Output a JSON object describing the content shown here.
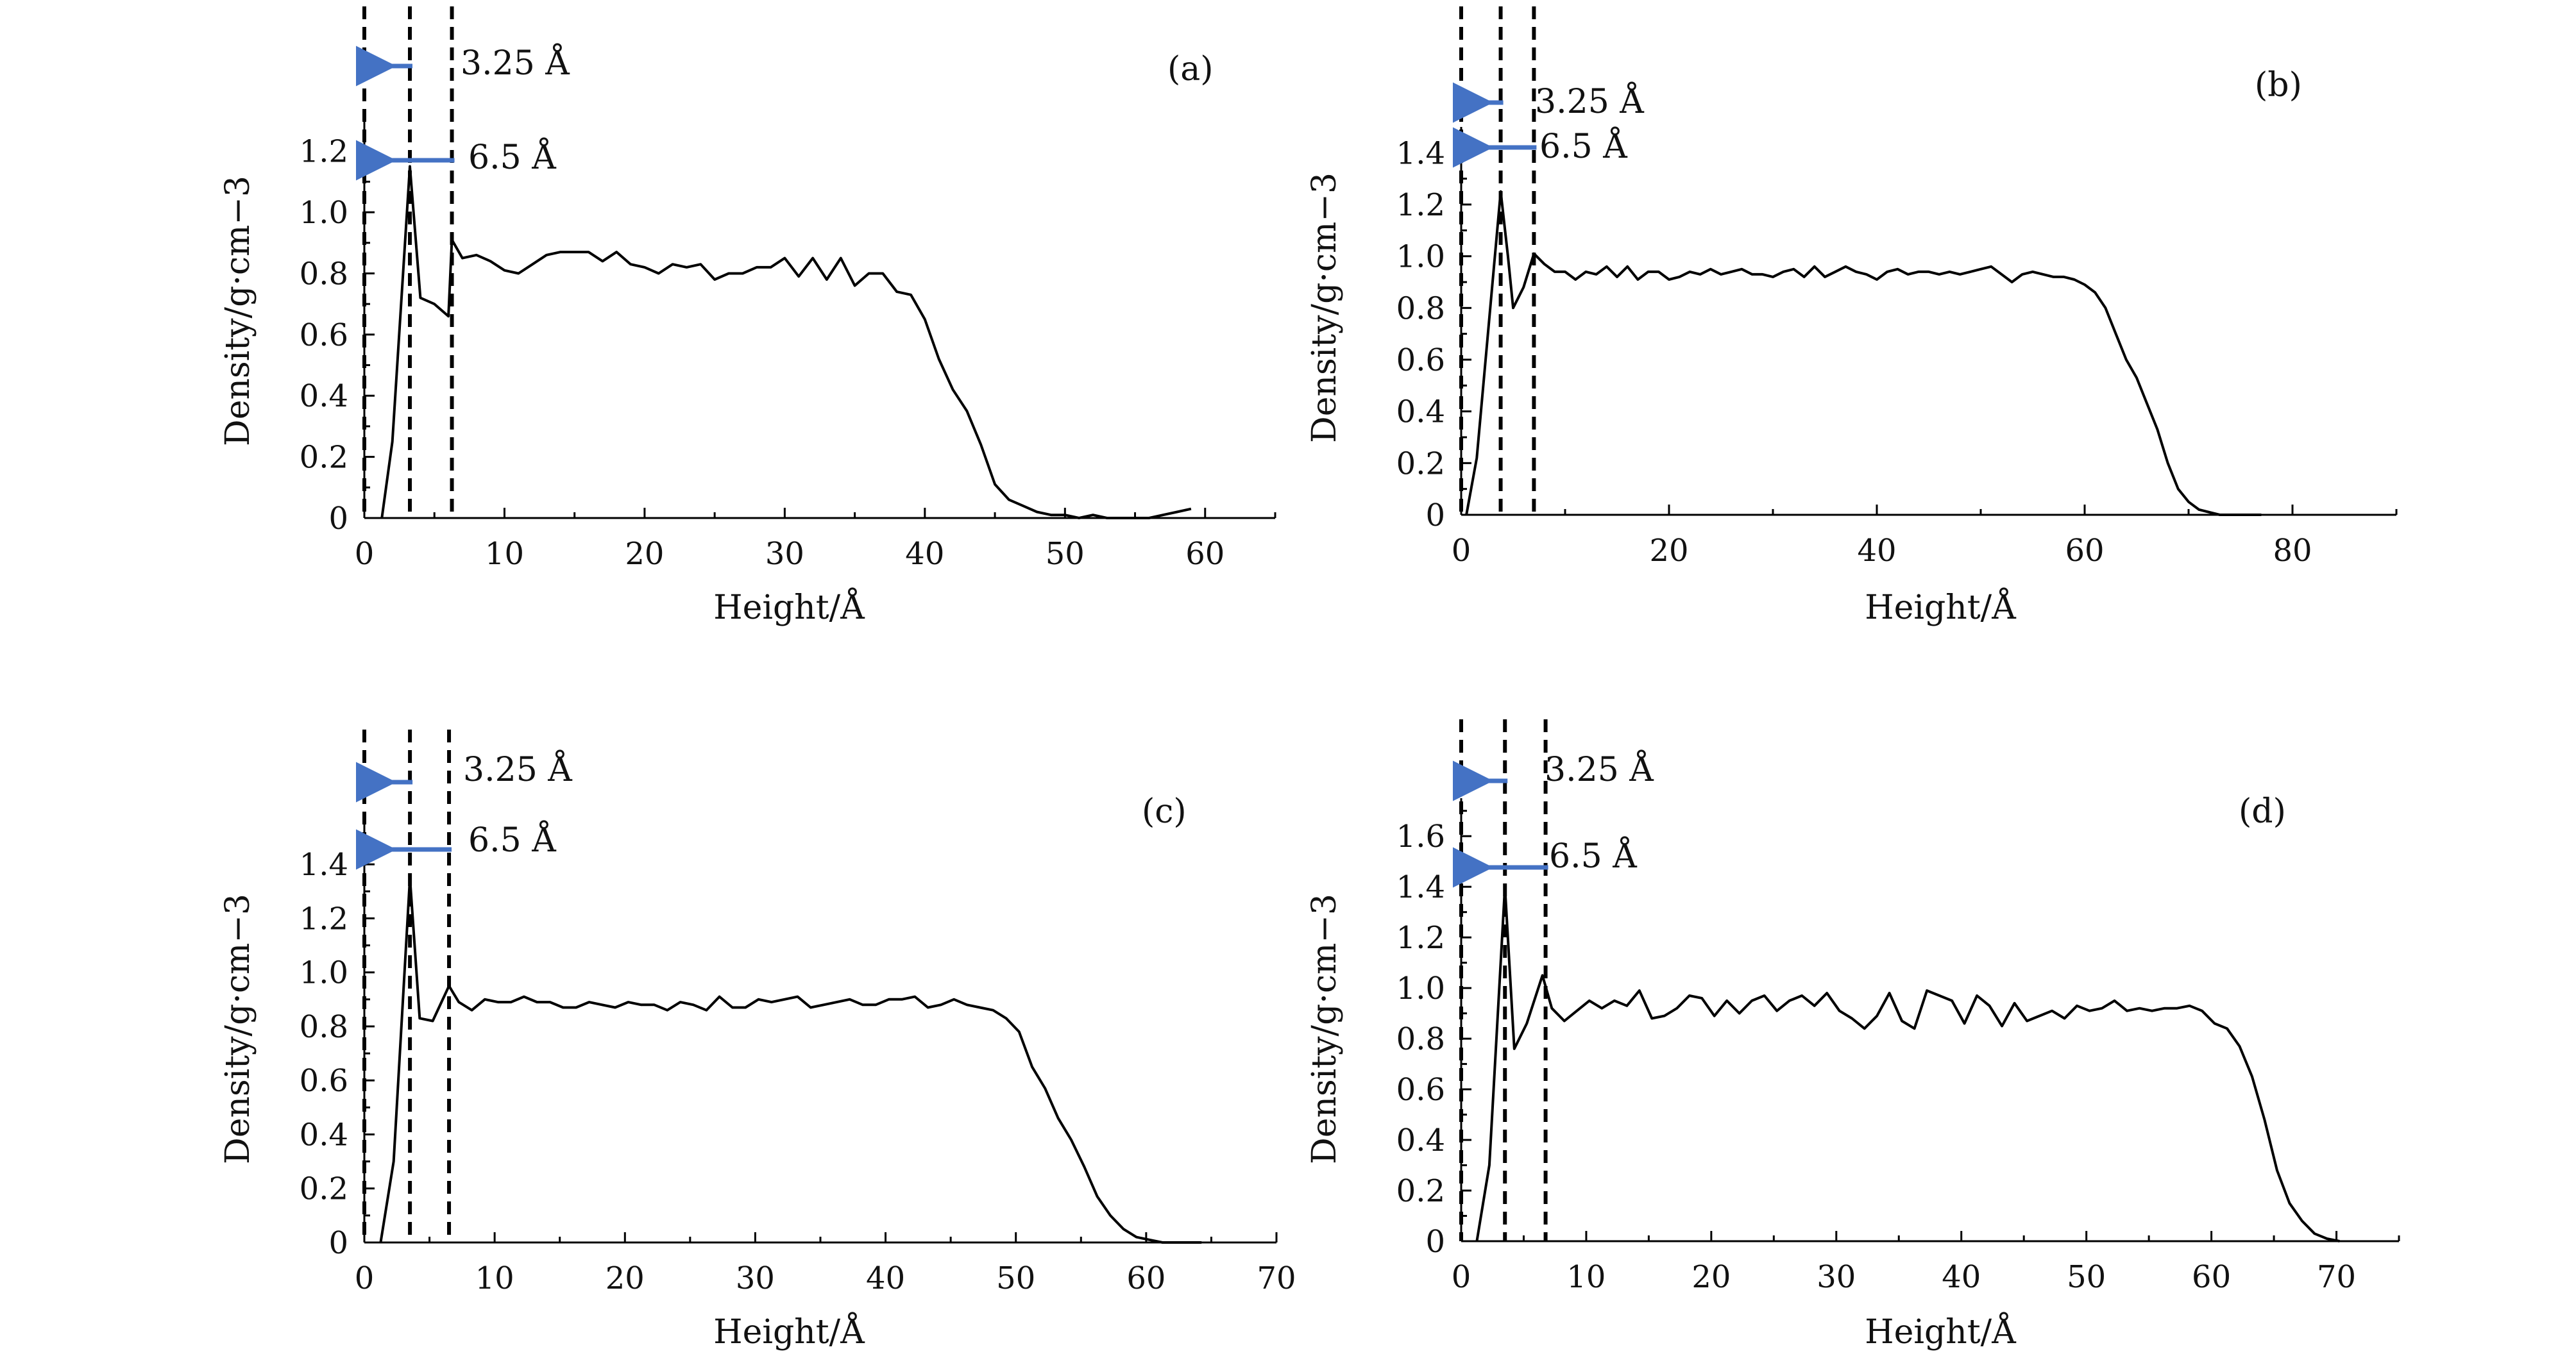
{
  "figure": {
    "arrow_color": "#4472C4",
    "line_color": "#000000"
  },
  "chart_data": [
    {
      "panel": "(a)",
      "type": "line",
      "xlabel": "Height/Å",
      "ylabel": "Density/g·cm−3",
      "xlim": [
        0,
        65
      ],
      "ylim": [
        0,
        1.3
      ],
      "xticks": [
        0,
        10,
        20,
        30,
        40,
        50,
        60
      ],
      "yticks": [
        0,
        0.2,
        0.4,
        0.6,
        0.8,
        1.0,
        1.2
      ],
      "ytick_labels": [
        "0",
        "0.2",
        "0.4",
        "0.6",
        "0.8",
        "1.0",
        "1.2"
      ],
      "ymin_ticks": [
        0.1,
        0.3,
        0.5,
        0.7,
        0.9,
        1.1
      ],
      "xmin_ticks": [
        5,
        15,
        25,
        35,
        45,
        55,
        65
      ],
      "vlines": [
        0,
        3.25,
        6.25
      ],
      "annotations": {
        "a1": "3.25 Å",
        "a2": "6.5 Å"
      },
      "x": [
        1.25,
        2.0,
        3.25,
        4.0,
        5.0,
        6.0,
        6.25,
        7.0,
        8.0,
        9.0,
        10.0,
        11.0,
        12.0,
        13.0,
        14.0,
        15.0,
        16.0,
        17.0,
        18.0,
        19.0,
        20.0,
        21.0,
        22.0,
        23.0,
        24.0,
        25.0,
        26.0,
        27.0,
        28.0,
        29.0,
        30.0,
        31.0,
        32.0,
        33.0,
        34.0,
        35.0,
        36.0,
        37.0,
        38.0,
        39.0,
        40.0,
        41.0,
        42.0,
        43.0,
        44.0,
        45.0,
        46.0,
        47.0,
        48.0,
        49.0,
        50.0,
        51.0,
        52.0,
        53.0,
        54.0,
        55.0,
        56.0,
        57.0,
        58.0,
        59.0
      ],
      "y": [
        0.0,
        0.25,
        1.15,
        0.72,
        0.7,
        0.66,
        0.91,
        0.85,
        0.86,
        0.84,
        0.81,
        0.8,
        0.83,
        0.86,
        0.87,
        0.87,
        0.87,
        0.84,
        0.87,
        0.83,
        0.82,
        0.8,
        0.83,
        0.82,
        0.83,
        0.78,
        0.8,
        0.8,
        0.82,
        0.82,
        0.85,
        0.79,
        0.85,
        0.78,
        0.85,
        0.76,
        0.8,
        0.8,
        0.74,
        0.73,
        0.65,
        0.52,
        0.42,
        0.35,
        0.24,
        0.11,
        0.06,
        0.04,
        0.02,
        0.01,
        0.01,
        0.0,
        0.01,
        0.0,
        0.0,
        0.0,
        0.0,
        0.01,
        0.02,
        0.03
      ]
    },
    {
      "panel": "(b)",
      "type": "line",
      "xlabel": "Height/Å",
      "ylabel": "Density/g·cm−3",
      "xlim": [
        0,
        90
      ],
      "ylim": [
        0,
        1.5
      ],
      "xticks": [
        0,
        20,
        40,
        60,
        80
      ],
      "yticks": [
        0,
        0.2,
        0.4,
        0.6,
        0.8,
        1.0,
        1.2,
        1.4
      ],
      "ytick_labels": [
        "0",
        "0.2",
        "0.4",
        "0.6",
        "0.8",
        "1.0",
        "1.2",
        "1.4"
      ],
      "ymin_ticks": [
        0.1,
        0.3,
        0.5,
        0.7,
        0.9,
        1.1,
        1.3
      ],
      "xmin_ticks": [
        10,
        30,
        50,
        70,
        90
      ],
      "vlines": [
        0,
        3.8,
        7.0
      ],
      "annotations": {
        "a1": "3.25 Å",
        "a2": "6.5 Å"
      },
      "x": [
        0.5,
        1.5,
        3.8,
        4.5,
        5.0,
        6.0,
        7.0,
        8.0,
        9.0,
        10.0,
        11.0,
        12.0,
        13.0,
        14.0,
        15.0,
        16.0,
        17.0,
        18.0,
        19.0,
        20.0,
        21.0,
        22.0,
        23.0,
        24.0,
        25.0,
        26.0,
        27.0,
        28.0,
        29.0,
        30.0,
        31.0,
        32.0,
        33.0,
        34.0,
        35.0,
        36.0,
        37.0,
        38.0,
        39.0,
        40.0,
        41.0,
        42.0,
        43.0,
        44.0,
        45.0,
        46.0,
        47.0,
        48.0,
        49.0,
        50.0,
        51.0,
        52.0,
        53.0,
        54.0,
        55.0,
        56.0,
        57.0,
        58.0,
        59.0,
        60.0,
        61.0,
        62.0,
        63.0,
        64.0,
        65.0,
        66.0,
        67.0,
        68.0,
        69.0,
        70.0,
        71.0,
        72.0,
        73.0,
        74.0,
        75.0,
        76.0,
        77.0
      ],
      "y": [
        0.0,
        0.22,
        1.25,
        1.0,
        0.8,
        0.88,
        1.01,
        0.97,
        0.94,
        0.94,
        0.91,
        0.94,
        0.93,
        0.96,
        0.92,
        0.96,
        0.91,
        0.94,
        0.94,
        0.91,
        0.92,
        0.94,
        0.93,
        0.95,
        0.93,
        0.94,
        0.95,
        0.93,
        0.93,
        0.92,
        0.94,
        0.95,
        0.92,
        0.96,
        0.92,
        0.94,
        0.96,
        0.94,
        0.93,
        0.91,
        0.94,
        0.95,
        0.93,
        0.94,
        0.94,
        0.93,
        0.94,
        0.93,
        0.94,
        0.95,
        0.96,
        0.93,
        0.9,
        0.93,
        0.94,
        0.93,
        0.92,
        0.92,
        0.91,
        0.89,
        0.86,
        0.8,
        0.7,
        0.6,
        0.53,
        0.43,
        0.33,
        0.2,
        0.1,
        0.05,
        0.02,
        0.01,
        0.0,
        0.0,
        0.0,
        0.0,
        0.0
      ]
    },
    {
      "panel": "(c)",
      "type": "line",
      "xlabel": "Height/Å",
      "ylabel": "Density/g·cm−3",
      "xlim": [
        0,
        70
      ],
      "ylim": [
        0,
        1.55
      ],
      "xticks": [
        0,
        10,
        20,
        30,
        40,
        50,
        60,
        70
      ],
      "yticks": [
        0,
        0.2,
        0.4,
        0.6,
        0.8,
        1.0,
        1.2,
        1.4
      ],
      "ytick_labels": [
        "0",
        "0.2",
        "0.4",
        "0.6",
        "0.8",
        "1.0",
        "1.2",
        "1.4"
      ],
      "ymin_ticks": [
        0.1,
        0.3,
        0.5,
        0.7,
        0.9,
        1.1,
        1.3,
        1.5
      ],
      "xmin_ticks": [
        5,
        15,
        25,
        35,
        45,
        55,
        65
      ],
      "vlines": [
        0,
        3.5,
        6.5
      ],
      "annotations": {
        "a1": "3.25 Å",
        "a2": "6.5 Å"
      },
      "x": [
        1.25,
        2.25,
        3.5,
        4.25,
        5.25,
        6.5,
        7.25,
        8.25,
        9.25,
        10.25,
        11.25,
        12.25,
        13.25,
        14.25,
        15.25,
        16.25,
        17.25,
        18.25,
        19.25,
        20.25,
        21.25,
        22.25,
        23.25,
        24.25,
        25.25,
        26.25,
        27.25,
        28.25,
        29.25,
        30.25,
        31.25,
        32.25,
        33.25,
        34.25,
        35.25,
        36.25,
        37.25,
        38.25,
        39.25,
        40.25,
        41.25,
        42.25,
        43.25,
        44.25,
        45.25,
        46.25,
        47.25,
        48.25,
        49.25,
        50.25,
        51.25,
        52.25,
        53.25,
        54.25,
        55.25,
        56.25,
        57.25,
        58.25,
        59.25,
        60.25,
        61.25,
        62.25,
        63.25,
        64.25
      ],
      "y": [
        0.0,
        0.3,
        1.35,
        0.83,
        0.82,
        0.95,
        0.89,
        0.86,
        0.9,
        0.89,
        0.89,
        0.91,
        0.89,
        0.89,
        0.87,
        0.87,
        0.89,
        0.88,
        0.87,
        0.89,
        0.88,
        0.88,
        0.86,
        0.89,
        0.88,
        0.86,
        0.91,
        0.87,
        0.87,
        0.9,
        0.89,
        0.9,
        0.91,
        0.87,
        0.88,
        0.89,
        0.9,
        0.88,
        0.88,
        0.9,
        0.9,
        0.91,
        0.87,
        0.88,
        0.9,
        0.88,
        0.87,
        0.86,
        0.83,
        0.78,
        0.65,
        0.57,
        0.46,
        0.38,
        0.28,
        0.17,
        0.1,
        0.05,
        0.02,
        0.01,
        0.0,
        0.0,
        0.0,
        0.0
      ]
    },
    {
      "panel": "(d)",
      "type": "line",
      "xlabel": "Height/Å",
      "ylabel": "Density/g·cm−3",
      "xlim": [
        0,
        75
      ],
      "ylim": [
        0,
        1.75
      ],
      "xticks": [
        0,
        10,
        20,
        30,
        40,
        50,
        60,
        70
      ],
      "yticks": [
        0,
        0.2,
        0.4,
        0.6,
        0.8,
        1.0,
        1.2,
        1.4,
        1.6
      ],
      "ytick_labels": [
        "0",
        "0.2",
        "0.4",
        "0.6",
        "0.8",
        "1.0",
        "1.2",
        "1.4",
        "1.6"
      ],
      "ymin_ticks": [
        0.1,
        0.3,
        0.5,
        0.7,
        0.9,
        1.1,
        1.3,
        1.5,
        1.7
      ],
      "xmin_ticks": [
        5,
        15,
        25,
        35,
        45,
        55,
        65,
        75
      ],
      "vlines": [
        0,
        3.5,
        6.75
      ],
      "annotations": {
        "a1": "3.25 Å",
        "a2": "6.5 Å"
      },
      "x": [
        1.25,
        2.25,
        3.5,
        4.25,
        5.25,
        6.5,
        7.25,
        8.25,
        9.25,
        10.25,
        11.25,
        12.25,
        13.25,
        14.25,
        15.25,
        16.25,
        17.25,
        18.25,
        19.25,
        20.25,
        21.25,
        22.25,
        23.25,
        24.25,
        25.25,
        26.25,
        27.25,
        28.25,
        29.25,
        30.25,
        31.25,
        32.25,
        33.25,
        34.25,
        35.25,
        36.25,
        37.25,
        38.25,
        39.25,
        40.25,
        41.25,
        42.25,
        43.25,
        44.25,
        45.25,
        46.25,
        47.25,
        48.25,
        49.25,
        50.25,
        51.25,
        52.25,
        53.25,
        54.25,
        55.25,
        56.25,
        57.25,
        58.25,
        59.25,
        60.25,
        61.25,
        62.25,
        63.25,
        64.25,
        65.25,
        66.25,
        67.25,
        68.25,
        69.25,
        70.25
      ],
      "y": [
        0.0,
        0.3,
        1.4,
        0.76,
        0.86,
        1.05,
        0.92,
        0.87,
        0.91,
        0.95,
        0.92,
        0.95,
        0.93,
        0.99,
        0.88,
        0.89,
        0.92,
        0.97,
        0.96,
        0.89,
        0.95,
        0.9,
        0.95,
        0.97,
        0.91,
        0.95,
        0.97,
        0.93,
        0.98,
        0.91,
        0.88,
        0.84,
        0.89,
        0.98,
        0.87,
        0.84,
        0.99,
        0.97,
        0.95,
        0.86,
        0.97,
        0.93,
        0.85,
        0.94,
        0.87,
        0.89,
        0.91,
        0.88,
        0.93,
        0.91,
        0.92,
        0.95,
        0.91,
        0.92,
        0.91,
        0.92,
        0.92,
        0.93,
        0.91,
        0.86,
        0.84,
        0.77,
        0.65,
        0.48,
        0.28,
        0.15,
        0.08,
        0.03,
        0.01,
        0.0
      ]
    }
  ]
}
